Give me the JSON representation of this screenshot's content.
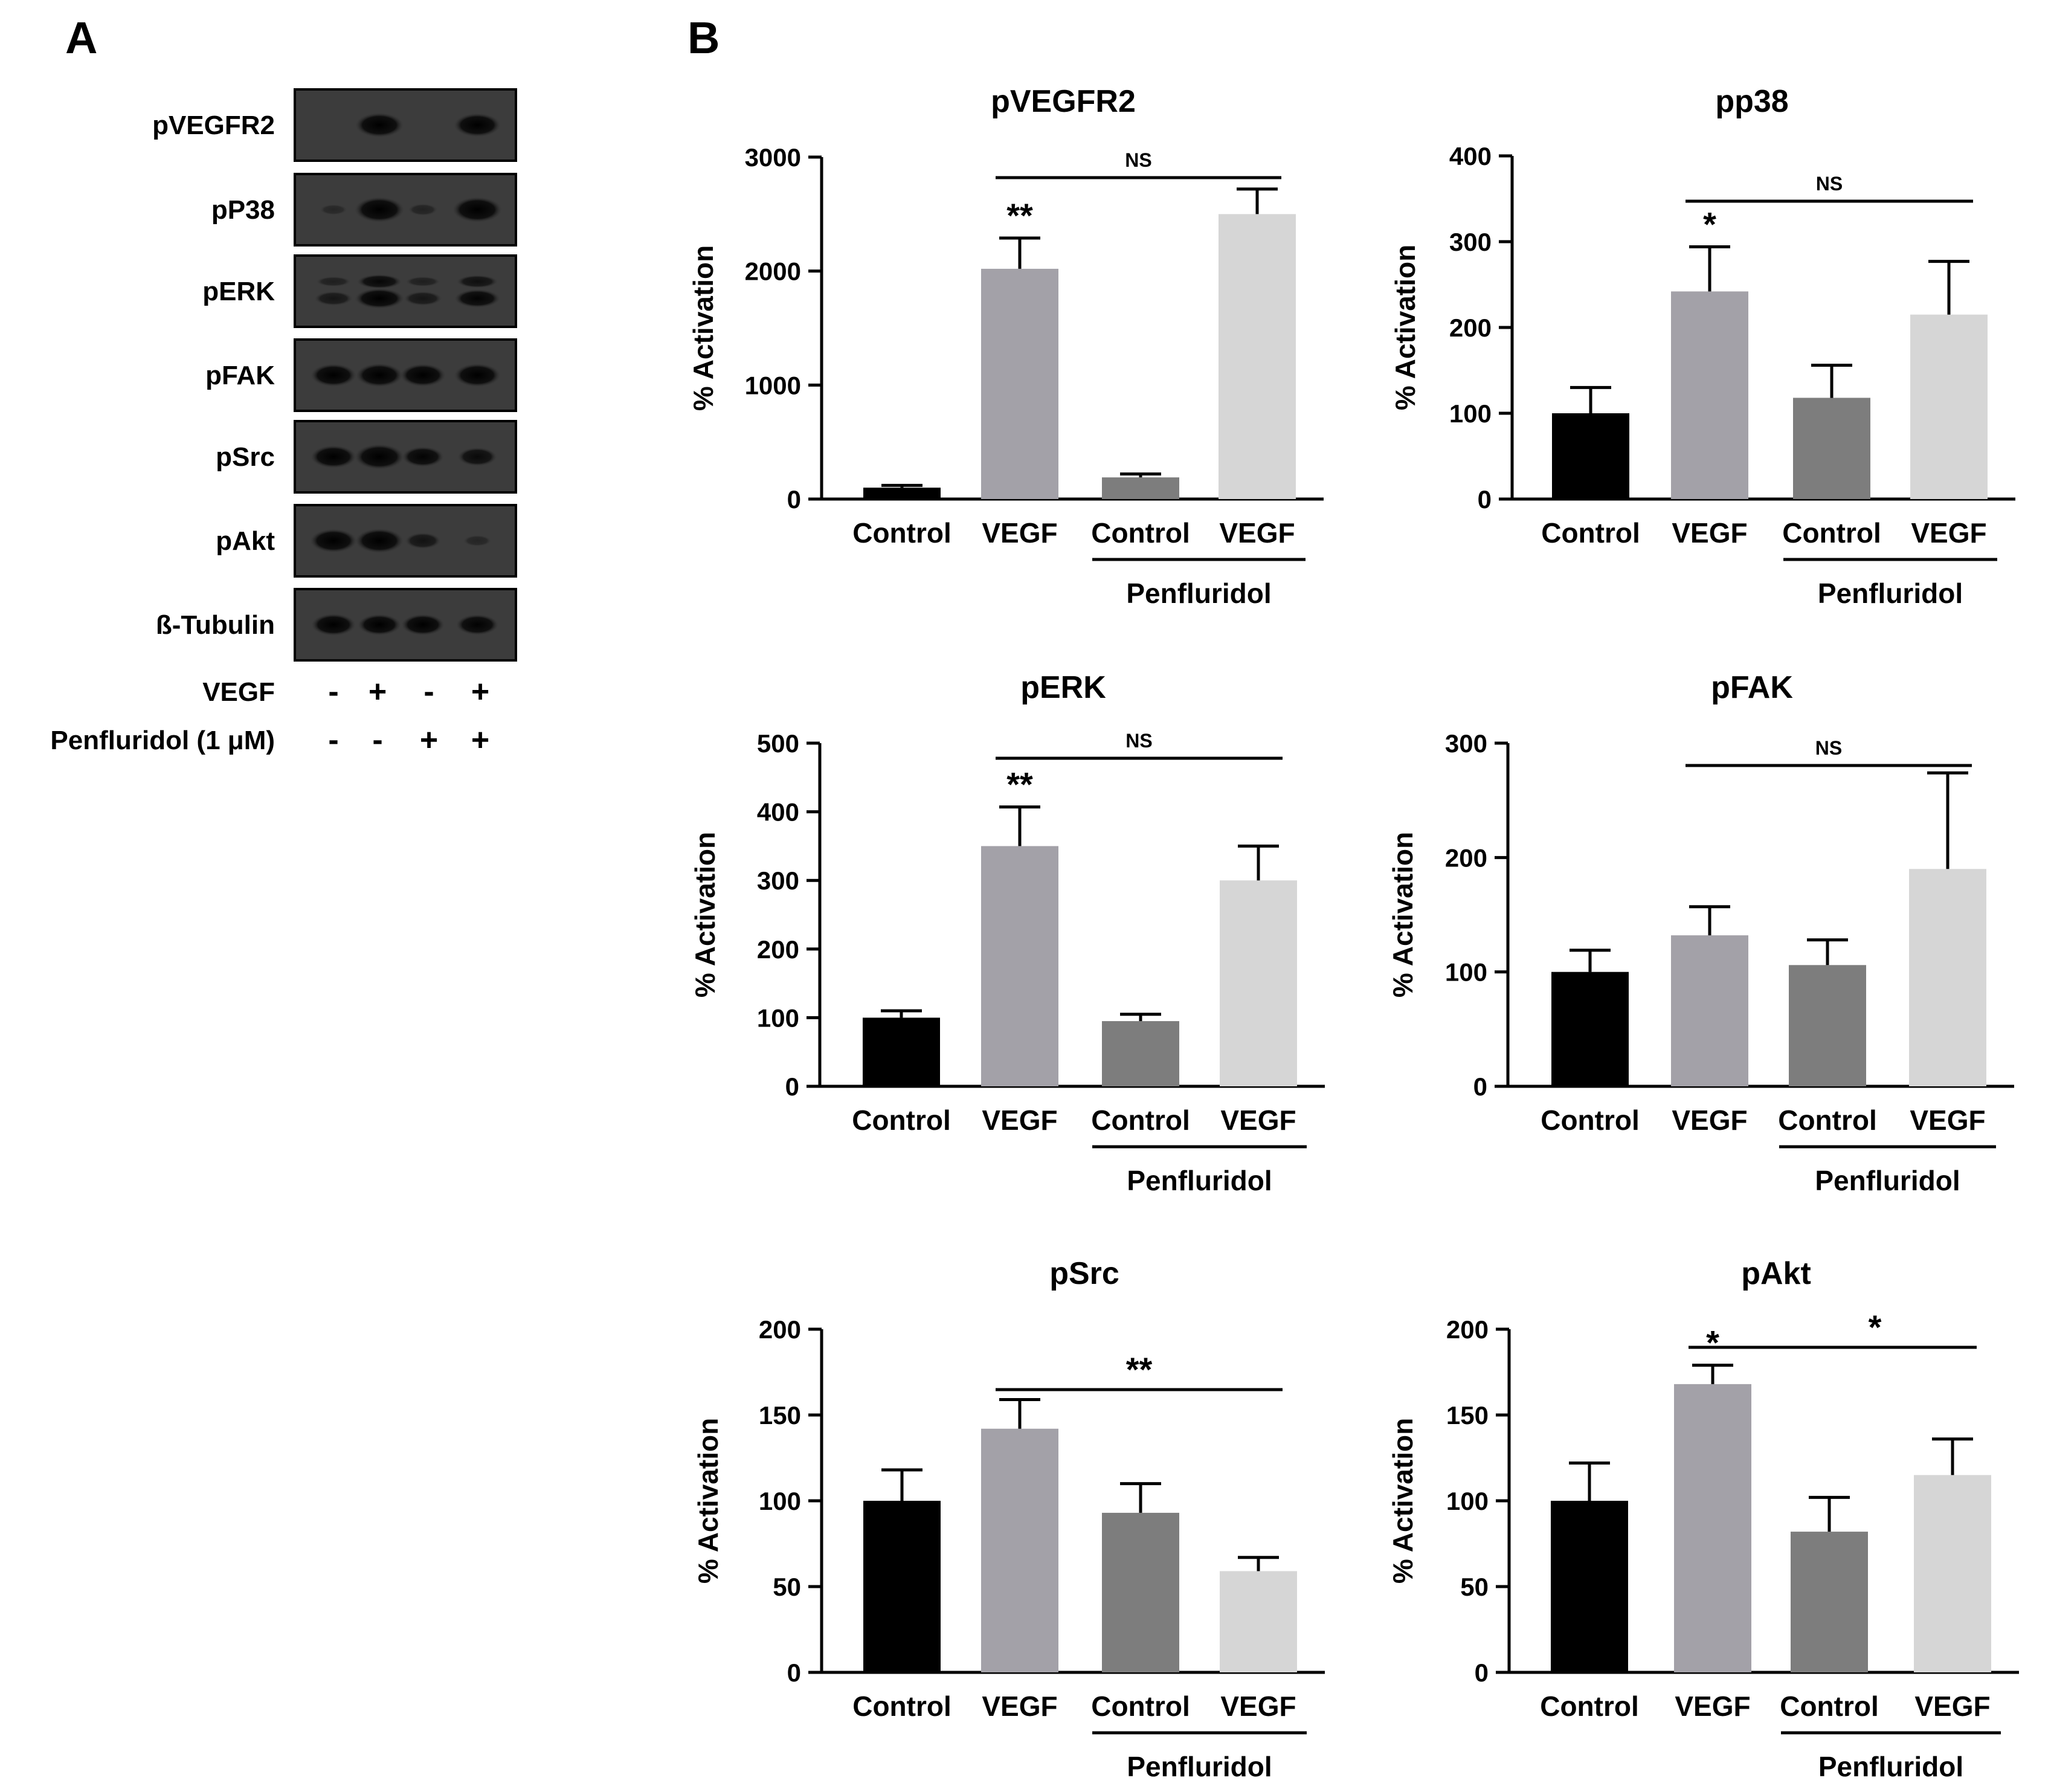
{
  "panel_labels": {
    "a": "A",
    "b": "B"
  },
  "blot": {
    "rows": [
      {
        "label": "pVEGFR2",
        "bands": [
          0,
          0.95,
          0,
          0.9
        ],
        "doublet": false
      },
      {
        "label": "pP38",
        "bands": [
          0.12,
          1.0,
          0.2,
          1.0
        ],
        "doublet": false
      },
      {
        "label": "pERK",
        "bands": [
          0.55,
          1.0,
          0.55,
          0.85
        ],
        "doublet": true
      },
      {
        "label": "pFAK",
        "bands": [
          0.85,
          0.9,
          0.85,
          0.88
        ],
        "doublet": false
      },
      {
        "label": "pSrc",
        "bands": [
          0.85,
          1.0,
          0.7,
          0.6
        ],
        "doublet": false
      },
      {
        "label": "pAkt",
        "bands": [
          0.9,
          0.95,
          0.45,
          0.15
        ],
        "doublet": false
      },
      {
        "label": "ß-Tubulin",
        "bands": [
          0.8,
          0.75,
          0.75,
          0.72
        ],
        "doublet": false
      }
    ],
    "treatments": [
      {
        "label": "VEGF",
        "signs": [
          "-",
          "+",
          "-",
          "+"
        ]
      },
      {
        "label": "Penfluridol (1 μM)",
        "signs": [
          "-",
          "-",
          "+",
          "+"
        ]
      }
    ]
  },
  "colors": {
    "Control": "#000000",
    "VEGF": "#a3a1a8",
    "Penf Control": "#7d7d7d",
    "Penf VEGF": "#d6d6d6"
  },
  "chart_data": [
    {
      "type": "bar",
      "title": "pVEGFR2",
      "ylabel": "% Activation",
      "categories": [
        "Control",
        "VEGF",
        "Control",
        "VEGF"
      ],
      "group_label": "Penfluridol",
      "values": [
        100,
        2020,
        190,
        2500
      ],
      "errors": [
        20,
        270,
        30,
        220
      ],
      "ylim": [
        0,
        3000
      ],
      "yticks": [
        0,
        1000,
        2000,
        3000
      ],
      "annotations": [
        {
          "bar": 1,
          "text": "**"
        }
      ],
      "bracket": {
        "from": 1,
        "to": 3,
        "text": "NS"
      }
    },
    {
      "type": "bar",
      "title": "pp38",
      "ylabel": "% Activation",
      "categories": [
        "Control",
        "VEGF",
        "Control",
        "VEGF"
      ],
      "group_label": "Penfluridol",
      "values": [
        100,
        242,
        118,
        215
      ],
      "errors": [
        30,
        52,
        38,
        62
      ],
      "ylim": [
        0,
        400
      ],
      "yticks": [
        0,
        100,
        200,
        300,
        400
      ],
      "annotations": [
        {
          "bar": 1,
          "text": "*"
        }
      ],
      "bracket": {
        "from": 1,
        "to": 3,
        "text": "NS"
      }
    },
    {
      "type": "bar",
      "title": "pERK",
      "ylabel": "% Activation",
      "categories": [
        "Control",
        "VEGF",
        "Control",
        "VEGF"
      ],
      "group_label": "Penfluridol",
      "values": [
        100,
        350,
        95,
        300
      ],
      "errors": [
        10,
        57,
        10,
        50
      ],
      "ylim": [
        0,
        500
      ],
      "yticks": [
        0,
        100,
        200,
        300,
        400,
        500
      ],
      "annotations": [
        {
          "bar": 1,
          "text": "**"
        }
      ],
      "bracket": {
        "from": 1,
        "to": 3,
        "text": "NS"
      }
    },
    {
      "type": "bar",
      "title": "pFAK",
      "ylabel": "% Activation",
      "categories": [
        "Control",
        "VEGF",
        "Control",
        "VEGF"
      ],
      "group_label": "Penfluridol",
      "values": [
        100,
        132,
        106,
        190
      ],
      "errors": [
        19,
        25,
        22,
        84
      ],
      "ylim": [
        0,
        300
      ],
      "yticks": [
        0,
        100,
        200,
        300
      ],
      "annotations": [],
      "bracket": {
        "from": 1,
        "to": 3,
        "text": "NS"
      }
    },
    {
      "type": "bar",
      "title": "pSrc",
      "ylabel": "% Activation",
      "categories": [
        "Control",
        "VEGF",
        "Control",
        "VEGF"
      ],
      "group_label": "Penfluridol",
      "values": [
        100,
        142,
        93,
        59
      ],
      "errors": [
        18,
        17,
        17,
        8
      ],
      "ylim": [
        0,
        200
      ],
      "yticks": [
        0,
        50,
        100,
        150,
        200
      ],
      "annotations": [],
      "bracket": {
        "from": 1,
        "to": 3,
        "text": "**"
      }
    },
    {
      "type": "bar",
      "title": "pAkt",
      "ylabel": "% Activation",
      "categories": [
        "Control",
        "VEGF",
        "Control",
        "VEGF"
      ],
      "group_label": "Penfluridol",
      "values": [
        100,
        168,
        82,
        115
      ],
      "errors": [
        22,
        11,
        20,
        21
      ],
      "ylim": [
        0,
        200
      ],
      "yticks": [
        0,
        50,
        100,
        150,
        200
      ],
      "annotations": [
        {
          "bar": 1,
          "text": "*"
        }
      ],
      "bracket": {
        "from": 1,
        "to": 3,
        "text": "*"
      }
    }
  ]
}
